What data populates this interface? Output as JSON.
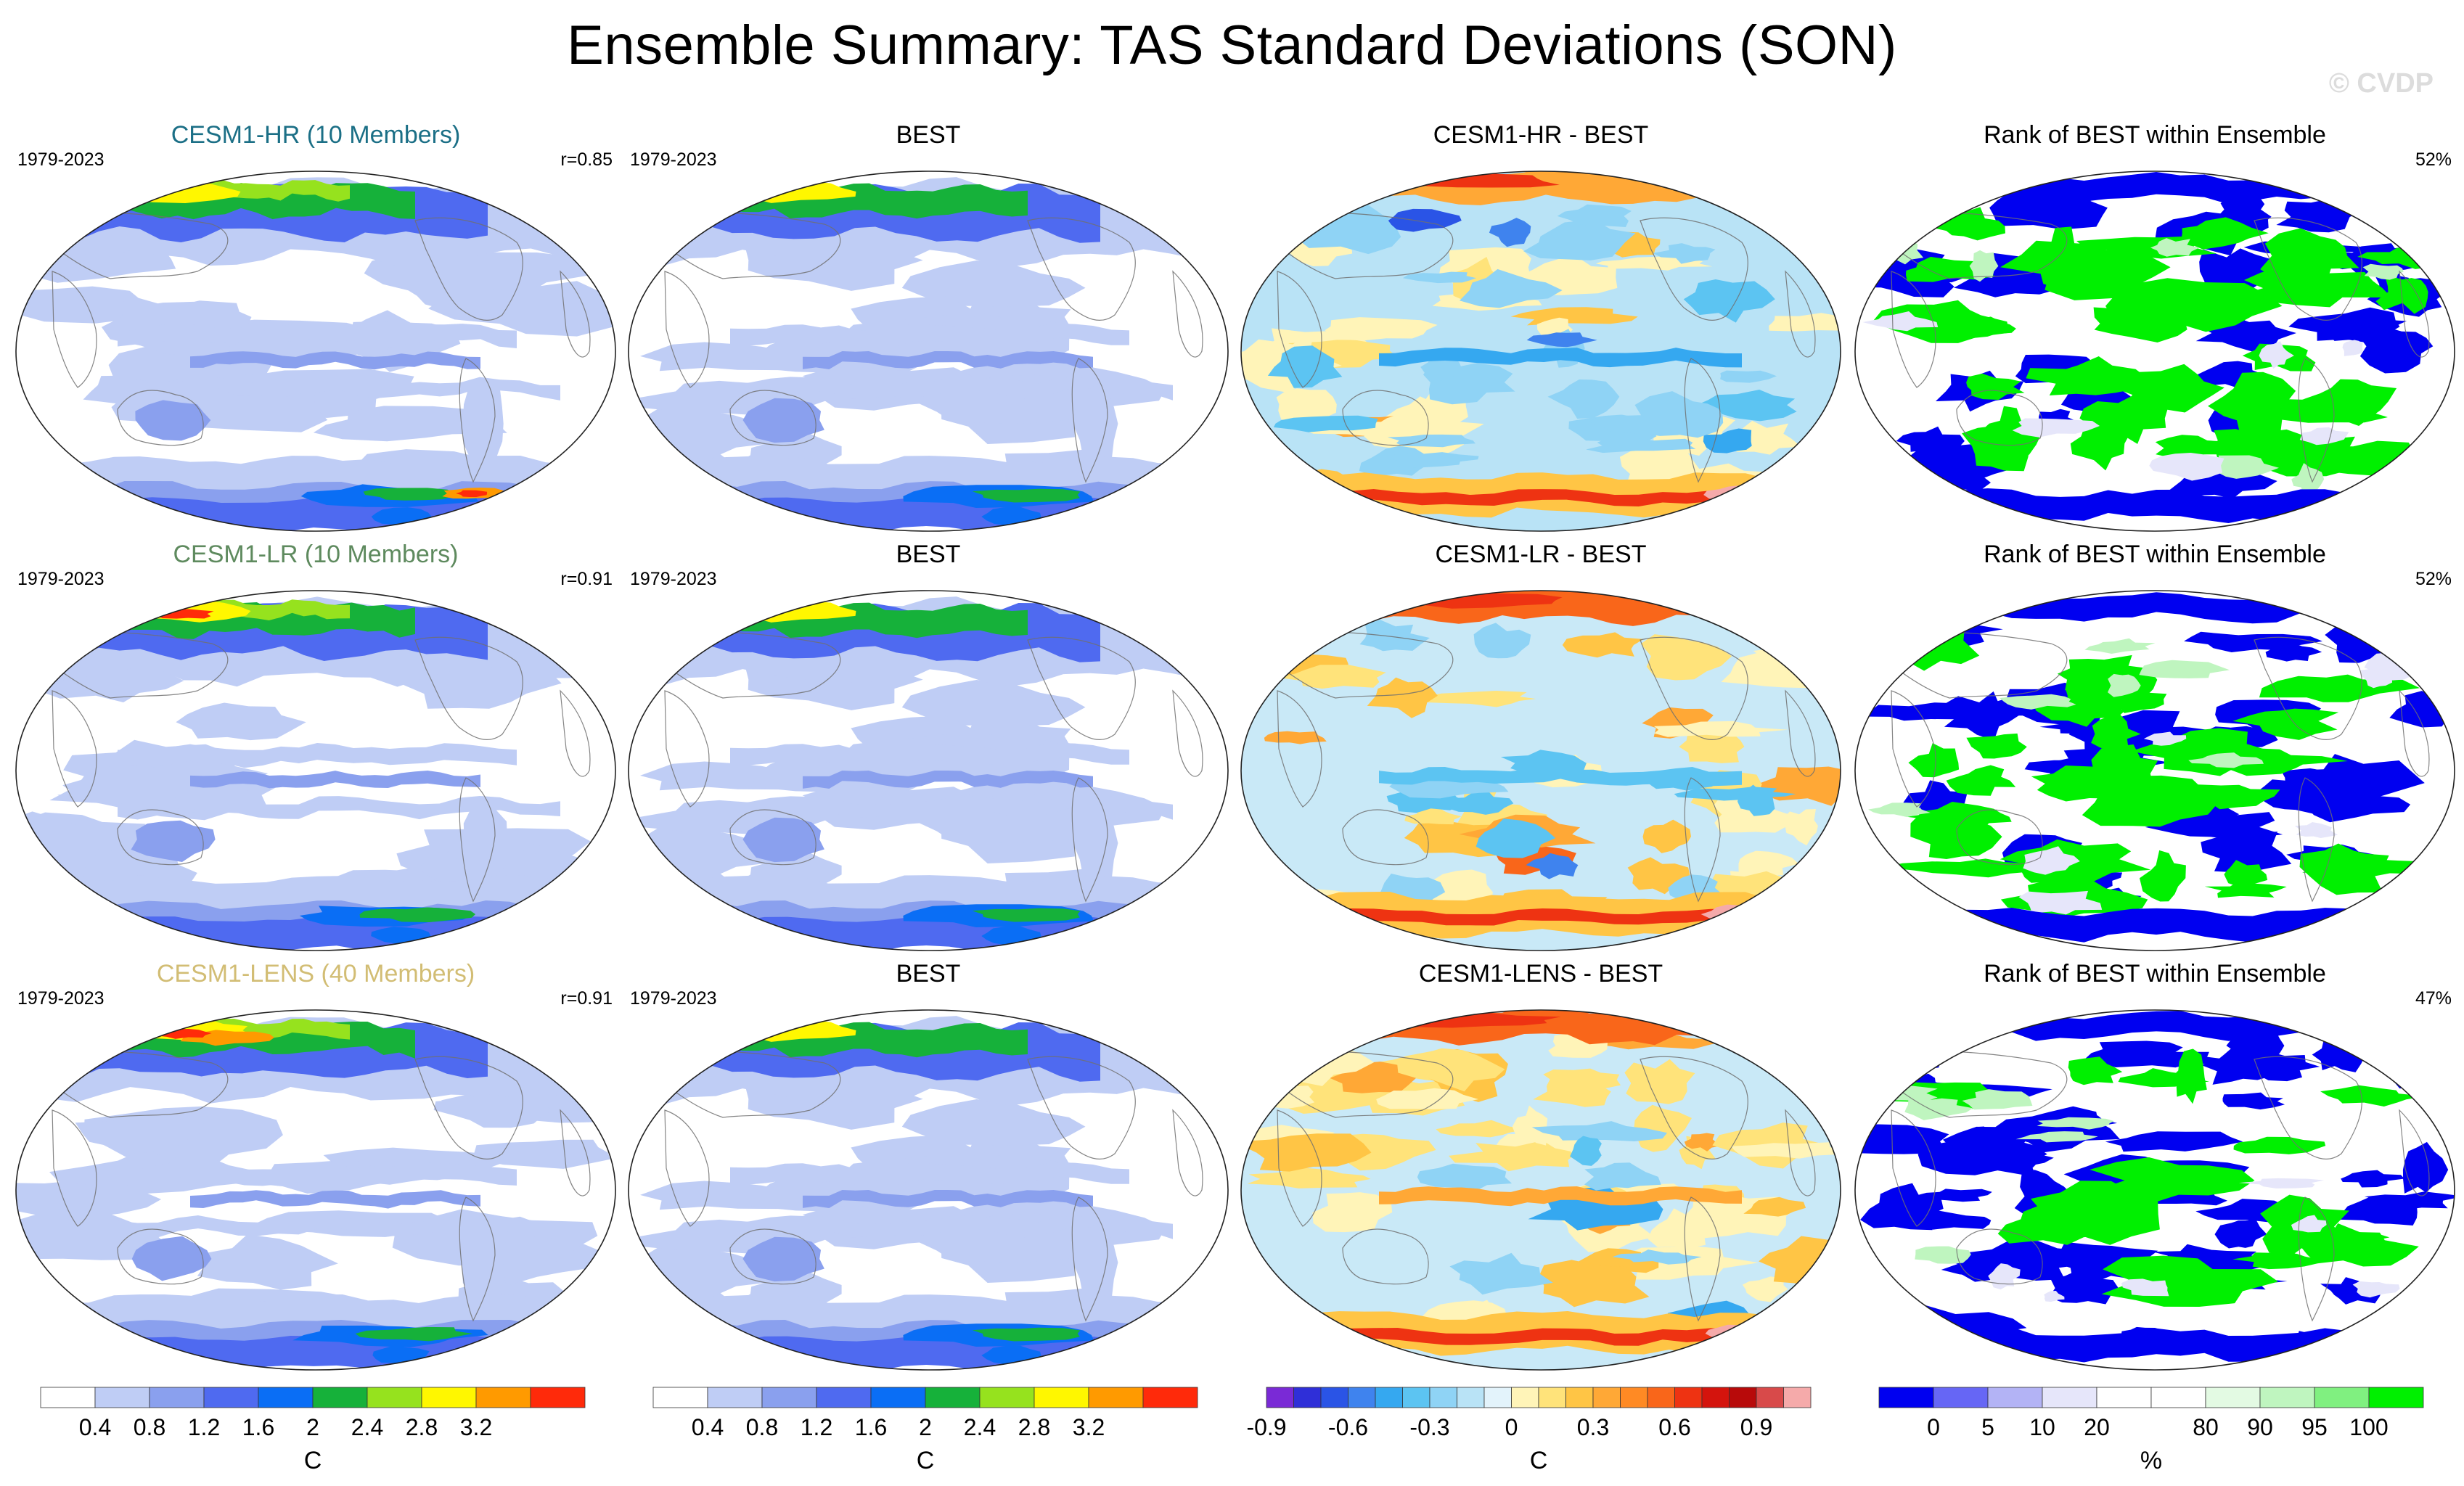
{
  "title": "Ensemble Summary: TAS Standard Deviations (SON)",
  "watermark": "© CVDP",
  "panels": [
    {
      "title": "CESM1-HR (10 Members)",
      "title_color": "#1b6f86",
      "left": "1979-2023",
      "right": "r=0.85",
      "kind": "std",
      "variant": 0
    },
    {
      "title": "BEST",
      "title_color": "#000000",
      "left": "1979-2023",
      "right": "",
      "kind": "std",
      "variant": 1
    },
    {
      "title": "CESM1-HR - BEST",
      "title_color": "#000000",
      "left": "",
      "right": "",
      "kind": "diff",
      "variant": 0
    },
    {
      "title": "Rank of BEST within Ensemble",
      "title_color": "#000000",
      "left": "",
      "right": "52%",
      "kind": "rank",
      "variant": 0
    },
    {
      "title": "CESM1-LR (10 Members)",
      "title_color": "#5e8a5e",
      "left": "1979-2023",
      "right": "r=0.91",
      "kind": "std",
      "variant": 2
    },
    {
      "title": "BEST",
      "title_color": "#000000",
      "left": "1979-2023",
      "right": "",
      "kind": "std",
      "variant": 1
    },
    {
      "title": "CESM1-LR - BEST",
      "title_color": "#000000",
      "left": "",
      "right": "",
      "kind": "diff",
      "variant": 1
    },
    {
      "title": "Rank of BEST within Ensemble",
      "title_color": "#000000",
      "left": "",
      "right": "52%",
      "kind": "rank",
      "variant": 1
    },
    {
      "title": "CESM1-LENS (40 Members)",
      "title_color": "#d2bd74",
      "left": "1979-2023",
      "right": "r=0.91",
      "kind": "std",
      "variant": 3
    },
    {
      "title": "BEST",
      "title_color": "#000000",
      "left": "1979-2023",
      "right": "",
      "kind": "std",
      "variant": 1
    },
    {
      "title": "CESM1-LENS - BEST",
      "title_color": "#000000",
      "left": "",
      "right": "",
      "kind": "diff",
      "variant": 2
    },
    {
      "title": "Rank of BEST within Ensemble",
      "title_color": "#000000",
      "left": "",
      "right": "47%",
      "kind": "rank",
      "variant": 2
    }
  ],
  "colorbars": [
    {
      "unit": "C",
      "colors": [
        "#ffffff",
        "#bfcdf5",
        "#8aa0ee",
        "#4f6af0",
        "#0a6ef5",
        "#16b13a",
        "#96e21e",
        "#fff700",
        "#ff9a00",
        "#ff2a0a"
      ],
      "labels": [
        "0.4",
        "0.8",
        "1.2",
        "1.6",
        "2",
        "2.4",
        "2.8",
        "3.2"
      ]
    },
    {
      "unit": "C",
      "colors": [
        "#ffffff",
        "#bfcdf5",
        "#8aa0ee",
        "#4f6af0",
        "#0a6ef5",
        "#16b13a",
        "#96e21e",
        "#fff700",
        "#ff9a00",
        "#ff2a0a"
      ],
      "labels": [
        "0.4",
        "0.8",
        "1.2",
        "1.6",
        "2",
        "2.4",
        "2.8",
        "3.2"
      ]
    },
    {
      "unit": "C",
      "colors": [
        "#7a2ad6",
        "#2f2fd8",
        "#2a54e6",
        "#3f83ee",
        "#35a8f0",
        "#5cc4f2",
        "#8fd3f5",
        "#b9e3f6",
        "#e3f3fb",
        "#fff4b8",
        "#ffe37a",
        "#ffc545",
        "#ffa836",
        "#ff8a24",
        "#f9661a",
        "#ee3312",
        "#d4140d",
        "#b80a0a",
        "#d84a4a",
        "#f5aaaa"
      ],
      "labels": [
        "-0.9",
        "-0.6",
        "-0.3",
        "0",
        "0.3",
        "0.6",
        "0.9"
      ]
    },
    {
      "unit": "%",
      "colors": [
        "#0000f0",
        "#6666f5",
        "#b3b3f5",
        "#e6e6fa",
        "#ffffff",
        "#ffffff",
        "#e3fae3",
        "#bff5bf",
        "#80f080",
        "#00f000"
      ],
      "labels": [
        "0",
        "5",
        "10",
        "20",
        "80",
        "90",
        "95",
        "100"
      ]
    }
  ],
  "chart_data": [
    {
      "type": "heatmap",
      "title": "CESM1-HR (10 Members)",
      "period": "1979-2023",
      "pattern_correlation": 0.85,
      "variable": "TAS standard deviation",
      "season": "SON",
      "units": "C"
    },
    {
      "type": "heatmap",
      "title": "BEST",
      "period": "1979-2023",
      "variable": "TAS standard deviation",
      "season": "SON",
      "units": "C"
    },
    {
      "type": "heatmap",
      "title": "CESM1-HR - BEST",
      "units": "C",
      "range": [
        -0.9,
        0.9
      ]
    },
    {
      "type": "heatmap",
      "title": "Rank of BEST within Ensemble",
      "area_fraction_percent": 52,
      "units": "%"
    },
    {
      "type": "heatmap",
      "title": "CESM1-LR (10 Members)",
      "period": "1979-2023",
      "pattern_correlation": 0.91,
      "variable": "TAS standard deviation",
      "season": "SON",
      "units": "C"
    },
    {
      "type": "heatmap",
      "title": "BEST",
      "period": "1979-2023",
      "variable": "TAS standard deviation",
      "season": "SON",
      "units": "C"
    },
    {
      "type": "heatmap",
      "title": "CESM1-LR - BEST",
      "units": "C",
      "range": [
        -0.9,
        0.9
      ]
    },
    {
      "type": "heatmap",
      "title": "Rank of BEST within Ensemble",
      "area_fraction_percent": 52,
      "units": "%"
    },
    {
      "type": "heatmap",
      "title": "CESM1-LENS (40 Members)",
      "period": "1979-2023",
      "pattern_correlation": 0.91,
      "variable": "TAS standard deviation",
      "season": "SON",
      "units": "C"
    },
    {
      "type": "heatmap",
      "title": "BEST",
      "period": "1979-2023",
      "variable": "TAS standard deviation",
      "season": "SON",
      "units": "C"
    },
    {
      "type": "heatmap",
      "title": "CESM1-LENS - BEST",
      "units": "C",
      "range": [
        -0.9,
        0.9
      ]
    },
    {
      "type": "heatmap",
      "title": "Rank of BEST within Ensemble",
      "area_fraction_percent": 47,
      "units": "%"
    }
  ]
}
